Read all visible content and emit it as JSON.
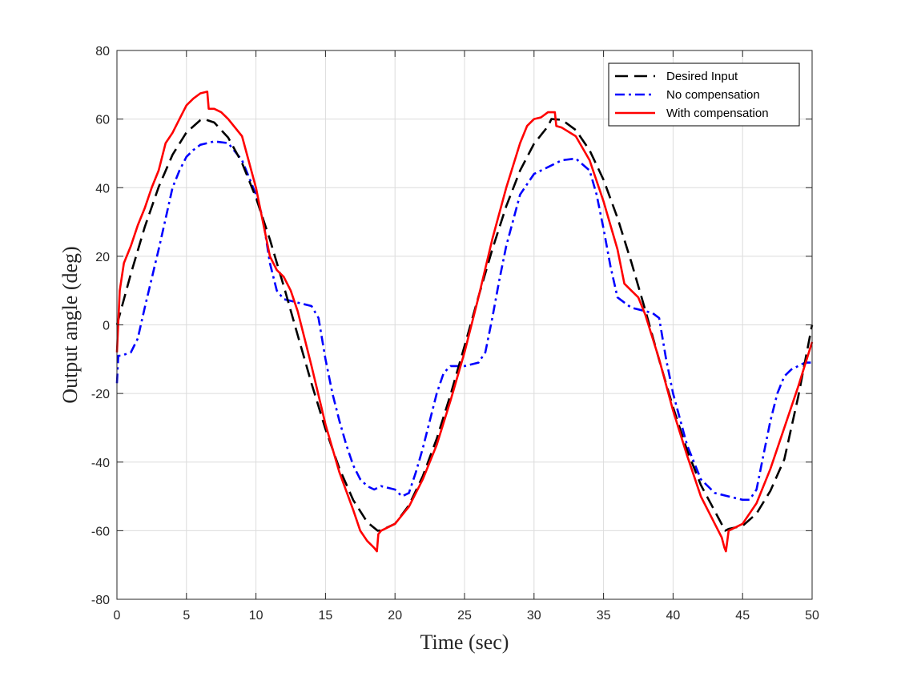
{
  "chart_data": {
    "type": "line",
    "title": "",
    "xlabel": "Time (sec)",
    "ylabel": "Output angle (deg)",
    "xlim": [
      0,
      50
    ],
    "ylim": [
      -80,
      80
    ],
    "x_ticks": [
      "0",
      "5",
      "10",
      "15",
      "20",
      "25",
      "30",
      "35",
      "40",
      "45",
      "50"
    ],
    "y_ticks": [
      "-80",
      "-60",
      "-40",
      "-20",
      "0",
      "20",
      "40",
      "60",
      "80"
    ],
    "grid": true,
    "legend_position": "top-right",
    "series": [
      {
        "name": "Desired Input",
        "color": "#000000",
        "style": "dashed",
        "x": [
          0,
          1,
          2,
          3,
          4,
          5,
          6,
          6.25,
          7,
          8,
          9,
          10,
          11,
          12,
          13,
          14,
          15,
          16,
          17,
          18,
          18.75,
          19,
          20,
          21,
          22,
          23,
          24,
          25,
          26,
          27,
          28,
          29,
          30,
          31,
          31.25,
          32,
          33,
          34,
          35,
          36,
          37,
          38,
          39,
          40,
          41,
          42,
          43,
          43.75,
          44,
          45,
          46,
          47,
          48,
          49,
          50
        ],
        "y": [
          0,
          14.9,
          28.5,
          40.2,
          49.6,
          56.1,
          59.7,
          60.0,
          59.0,
          54.6,
          47.2,
          37.1,
          24.9,
          11.3,
          -3.0,
          -17.1,
          -30.4,
          -41.9,
          -51.1,
          -57.5,
          -60.0,
          -59.9,
          -58.0,
          -52.6,
          -44.1,
          -33.2,
          -20.3,
          -6.2,
          8.2,
          22.0,
          34.6,
          45.0,
          52.8,
          57.9,
          60.0,
          59.8,
          56.8,
          50.9,
          42.3,
          31.2,
          18.3,
          4.3,
          -10.2,
          -24.0,
          -36.5,
          -46.7,
          -54.3,
          -60.0,
          -59.5,
          -58.6,
          -55.0,
          -48.4,
          -39.2,
          -21.0,
          0
        ]
      },
      {
        "name": "No compensation",
        "color": "#0000ff",
        "style": "dashdot",
        "x": [
          0,
          0.1,
          0.3,
          1,
          1.5,
          2,
          3,
          3.5,
          4,
          4.5,
          5,
          5.5,
          6,
          7,
          8,
          9,
          10,
          10.5,
          11,
          11.5,
          12,
          12.5,
          13,
          14,
          14.5,
          15,
          15.5,
          16,
          16.5,
          17,
          17.5,
          18,
          18.5,
          19,
          19.5,
          20,
          20.5,
          21,
          21.5,
          22,
          22.5,
          23,
          23.5,
          24,
          25,
          26,
          26.5,
          27,
          27.5,
          28,
          29,
          30,
          31,
          32,
          33,
          34,
          34.5,
          35,
          35.5,
          36,
          37,
          37.5,
          38,
          38.5,
          39,
          39.5,
          40,
          41,
          42,
          43,
          44,
          45,
          45.5,
          46,
          46.5,
          47,
          47.5,
          48,
          48.5,
          49,
          49.5,
          50
        ],
        "y": [
          -17,
          -9,
          -9,
          -8,
          -4,
          5,
          22,
          31,
          40,
          45,
          49,
          51,
          52.5,
          53.5,
          53,
          48,
          38,
          31,
          18,
          10,
          7.5,
          7,
          6.5,
          5.5,
          2,
          -10,
          -20,
          -28,
          -35,
          -41,
          -45,
          -47,
          -48,
          -47,
          -47.5,
          -48,
          -50,
          -49,
          -43,
          -36,
          -28,
          -20,
          -14,
          -12,
          -12,
          -11,
          -8,
          2,
          13,
          23,
          38,
          44,
          46,
          48,
          48.5,
          45,
          38,
          28,
          17,
          8,
          5,
          4.5,
          4,
          3.5,
          2,
          -10,
          -20,
          -35,
          -45,
          -49,
          -50,
          -51,
          -51,
          -48,
          -38,
          -28,
          -20,
          -15,
          -13,
          -12,
          -11,
          -11
        ]
      },
      {
        "name": "With compensation",
        "color": "#ff0000",
        "style": "solid",
        "x": [
          0,
          0.2,
          0.5,
          1,
          1.5,
          2,
          2.5,
          3,
          3.5,
          4,
          4.5,
          5,
          5.5,
          6,
          6.5,
          6.6,
          7,
          7.5,
          8,
          9,
          10,
          11,
          11.5,
          12,
          12.5,
          13,
          14,
          15,
          16,
          17,
          17.5,
          18,
          18.5,
          18.7,
          18.8,
          19,
          20,
          21,
          22,
          23,
          24,
          25,
          26,
          27,
          28,
          29,
          29.5,
          30,
          30.5,
          31,
          31.5,
          31.6,
          32,
          33,
          34,
          35,
          36,
          36.5,
          37,
          37.5,
          38,
          39,
          40,
          41,
          42,
          43,
          43.5,
          43.7,
          43.8,
          44,
          45,
          46,
          47,
          48,
          49,
          50
        ],
        "y": [
          -8,
          10,
          18,
          23,
          29,
          34,
          40,
          45,
          53,
          56,
          60,
          64,
          66,
          67.5,
          68,
          63,
          63,
          62,
          60,
          55,
          40,
          20,
          16,
          14,
          10,
          4,
          -12,
          -29,
          -43,
          -54,
          -60,
          -63,
          -65,
          -66,
          -61,
          -60,
          -58,
          -53,
          -45,
          -35,
          -22,
          -8,
          8,
          25,
          40,
          53,
          58,
          60,
          60.5,
          62,
          62,
          58,
          57.5,
          55,
          48,
          36,
          22,
          12,
          10,
          8,
          3,
          -10,
          -25,
          -38,
          -50,
          -58,
          -62,
          -65,
          -66,
          -60,
          -58,
          -52,
          -42,
          -30,
          -18,
          -5
        ]
      }
    ]
  }
}
